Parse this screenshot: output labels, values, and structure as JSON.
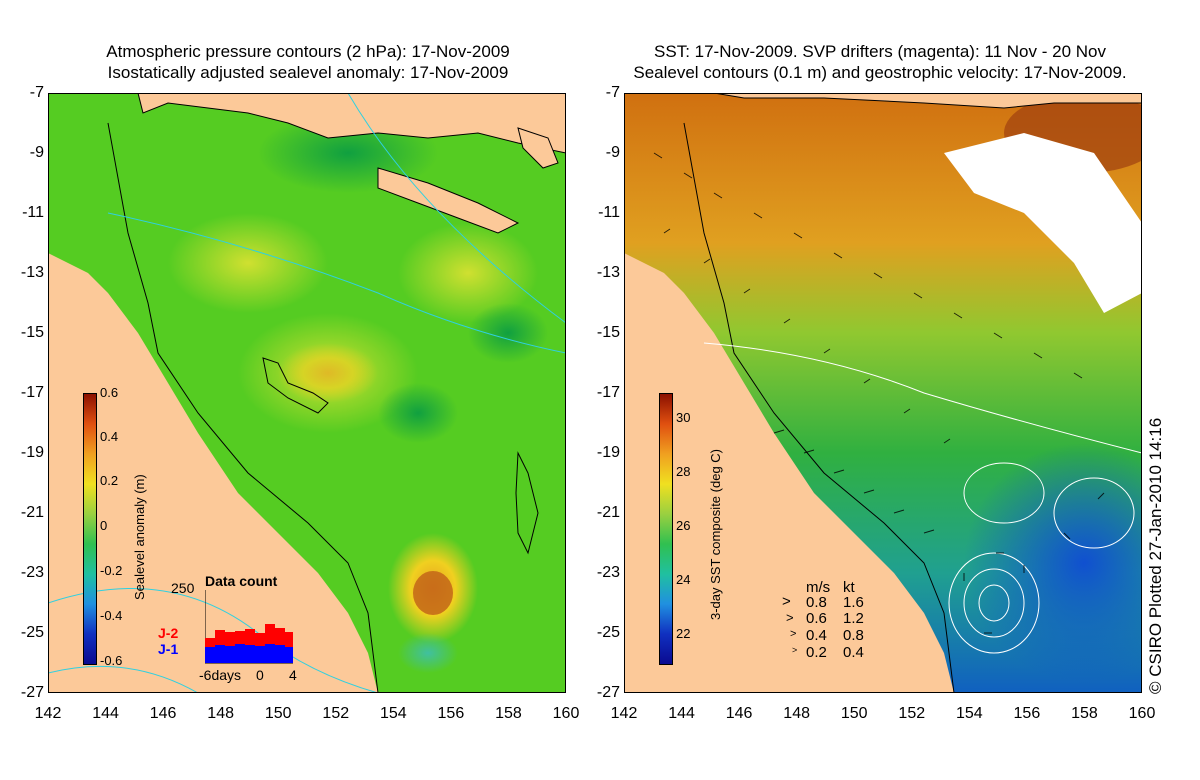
{
  "left_panel": {
    "title_line1": "Atmospheric pressure contours (2 hPa): 17-Nov-2009",
    "title_line2": "Isostatically adjusted sealevel anomaly: 17-Nov-2009",
    "colorbar": {
      "label": "Sealevel anomaly (m)",
      "ticks": [
        "0.6",
        "0.4",
        "0.2",
        "0",
        "-0.2",
        "-0.4",
        "-0.6"
      ],
      "range": [
        -0.6,
        0.6
      ]
    },
    "data_count": {
      "title": "Data count",
      "max_label": "250",
      "series_j2": "J-2",
      "series_j1": "J-1",
      "x_labels": [
        "-6days",
        "0",
        "4"
      ],
      "j2_color": "#ff0000",
      "j1_color": "#0000ff"
    }
  },
  "right_panel": {
    "title_line1": "SST: 17-Nov-2009. SVP drifters (magenta): 11 Nov - 20 Nov",
    "title_line2": "Sealevel contours (0.1 m) and geostrophic velocity: 17-Nov-2009.",
    "colorbar": {
      "label": "3-day SST composite (deg C)",
      "ticks": [
        "30",
        "28",
        "26",
        "24",
        "22"
      ],
      "range": [
        21,
        31
      ]
    },
    "speed_legend": {
      "header_ms": "m/s",
      "header_kt": "kt",
      "rows": [
        {
          "ms": "0.8",
          "kt": "1.6"
        },
        {
          "ms": "0.6",
          "kt": "1.2"
        },
        {
          "ms": "0.4",
          "kt": "0.8"
        },
        {
          "ms": "0.2",
          "kt": "0.4"
        }
      ]
    }
  },
  "axes": {
    "x_ticks": [
      "142",
      "144",
      "146",
      "148",
      "150",
      "152",
      "154",
      "156",
      "158",
      "160"
    ],
    "y_ticks": [
      "-7",
      "-9",
      "-11",
      "-13",
      "-15",
      "-17",
      "-19",
      "-21",
      "-23",
      "-25",
      "-27"
    ],
    "lon_range": [
      142,
      160
    ],
    "lat_range": [
      -27,
      -7
    ]
  },
  "credit": "© CSIRO Plotted 27-Jan-2010 14:16",
  "colors": {
    "land": "#fcc999",
    "ocean_base_left": "#55cc22",
    "ocean_base_right": "#33aa44"
  }
}
